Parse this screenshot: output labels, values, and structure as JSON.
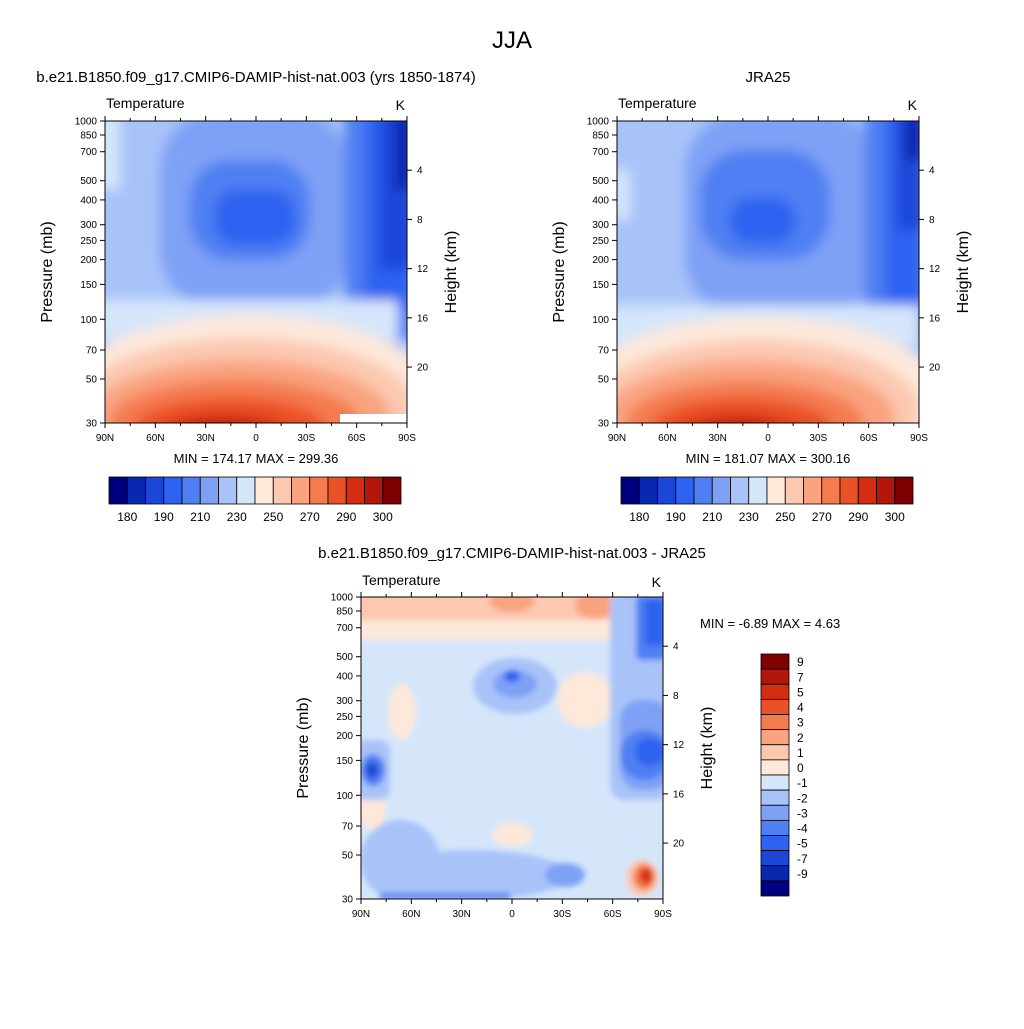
{
  "page": {
    "title": "JJA"
  },
  "panels": [
    {
      "title": "b.e21.B1850.f09_g17.CMIP6-DAMIP-hist-nat.003 (yrs 1850-1874)",
      "left_label": "Temperature",
      "unit": "K",
      "stats": "MIN = 174.17  MAX = 299.36",
      "ylabel": "Pressure (mb)",
      "ylabel_right": "Height (km)"
    },
    {
      "title": "JRA25",
      "left_label": "Temperature",
      "unit": "K",
      "stats": "MIN = 181.07  MAX = 300.16",
      "ylabel": "Pressure (mb)",
      "ylabel_right": "Height (km)"
    },
    {
      "title": "b.e21.B1850.f09_g17.CMIP6-DAMIP-hist-nat.003 - JRA25",
      "left_label": "Temperature",
      "unit": "K",
      "stats": "MIN =  -6.89  MAX =   4.63",
      "ylabel": "Pressure (mb)",
      "ylabel_right": "Height (km)"
    }
  ],
  "chart_data": [
    {
      "type": "heatmap",
      "title": "b.e21.B1850.f09_g17.CMIP6-DAMIP-hist-nat.003 (yrs 1850-1874)",
      "variable": "Temperature",
      "units": "K",
      "xlabel": "",
      "ylabel": "Pressure (mb)",
      "ylabel_right": "Height (km)",
      "x_ticks": [
        "90N",
        "60N",
        "30N",
        "0",
        "30S",
        "60S",
        "90S"
      ],
      "y_ticks": [
        "30",
        "50",
        "70",
        "100",
        "150",
        "200",
        "250",
        "300",
        "400",
        "500",
        "700",
        "850",
        "1000"
      ],
      "y_ticks_right": [
        "20",
        "16",
        "12",
        "8",
        "4"
      ],
      "ylim": [
        1000,
        30
      ],
      "min": 174.17,
      "max": 299.36,
      "colorbar_labels": [
        "180",
        "190",
        "210",
        "230",
        "250",
        "270",
        "290",
        "300"
      ],
      "colorbar_colors": [
        "#00007f",
        "#0828b0",
        "#1c46d8",
        "#2e62f0",
        "#4f7ff2",
        "#7ea1f5",
        "#a9c3f8",
        "#d5e6fb",
        "#fde8da",
        "#fcc8b0",
        "#f9a37f",
        "#f47a50",
        "#ea5128",
        "#d52d0f",
        "#b3160a",
        "#7f0000"
      ]
    },
    {
      "type": "heatmap",
      "title": "JRA25",
      "variable": "Temperature",
      "units": "K",
      "xlabel": "",
      "ylabel": "Pressure (mb)",
      "ylabel_right": "Height (km)",
      "x_ticks": [
        "90N",
        "60N",
        "30N",
        "0",
        "30S",
        "60S",
        "90S"
      ],
      "y_ticks": [
        "30",
        "50",
        "70",
        "100",
        "150",
        "200",
        "250",
        "300",
        "400",
        "500",
        "700",
        "850",
        "1000"
      ],
      "y_ticks_right": [
        "20",
        "16",
        "12",
        "8",
        "4"
      ],
      "ylim": [
        1000,
        30
      ],
      "min": 181.07,
      "max": 300.16,
      "colorbar_labels": [
        "180",
        "190",
        "210",
        "230",
        "250",
        "270",
        "290",
        "300"
      ],
      "colorbar_colors": [
        "#00007f",
        "#0828b0",
        "#1c46d8",
        "#2e62f0",
        "#4f7ff2",
        "#7ea1f5",
        "#a9c3f8",
        "#d5e6fb",
        "#fde8da",
        "#fcc8b0",
        "#f9a37f",
        "#f47a50",
        "#ea5128",
        "#d52d0f",
        "#b3160a",
        "#7f0000"
      ]
    },
    {
      "type": "heatmap",
      "title": "b.e21.B1850.f09_g17.CMIP6-DAMIP-hist-nat.003 - JRA25",
      "variable": "Temperature",
      "units": "K",
      "xlabel": "",
      "ylabel": "Pressure (mb)",
      "ylabel_right": "Height (km)",
      "x_ticks": [
        "90N",
        "60N",
        "30N",
        "0",
        "30S",
        "60S",
        "90S"
      ],
      "y_ticks": [
        "30",
        "50",
        "70",
        "100",
        "150",
        "200",
        "250",
        "300",
        "400",
        "500",
        "700",
        "850",
        "1000"
      ],
      "y_ticks_right": [
        "20",
        "16",
        "12",
        "8",
        "4"
      ],
      "ylim": [
        1000,
        30
      ],
      "min": -6.89,
      "max": 4.63,
      "colorbar_labels": [
        "9",
        "7",
        "5",
        "4",
        "3",
        "2",
        "1",
        "0",
        "-1",
        "-2",
        "-3",
        "-4",
        "-5",
        "-7",
        "-9"
      ],
      "colorbar_colors": [
        "#7f0000",
        "#b3160a",
        "#d52d0f",
        "#ea5128",
        "#f47a50",
        "#f9a37f",
        "#fcc8b0",
        "#fde8da",
        "#d5e6fb",
        "#a9c3f8",
        "#7ea1f5",
        "#4f7ff2",
        "#2e62f0",
        "#1c46d8",
        "#0828b0",
        "#00007f"
      ]
    }
  ]
}
